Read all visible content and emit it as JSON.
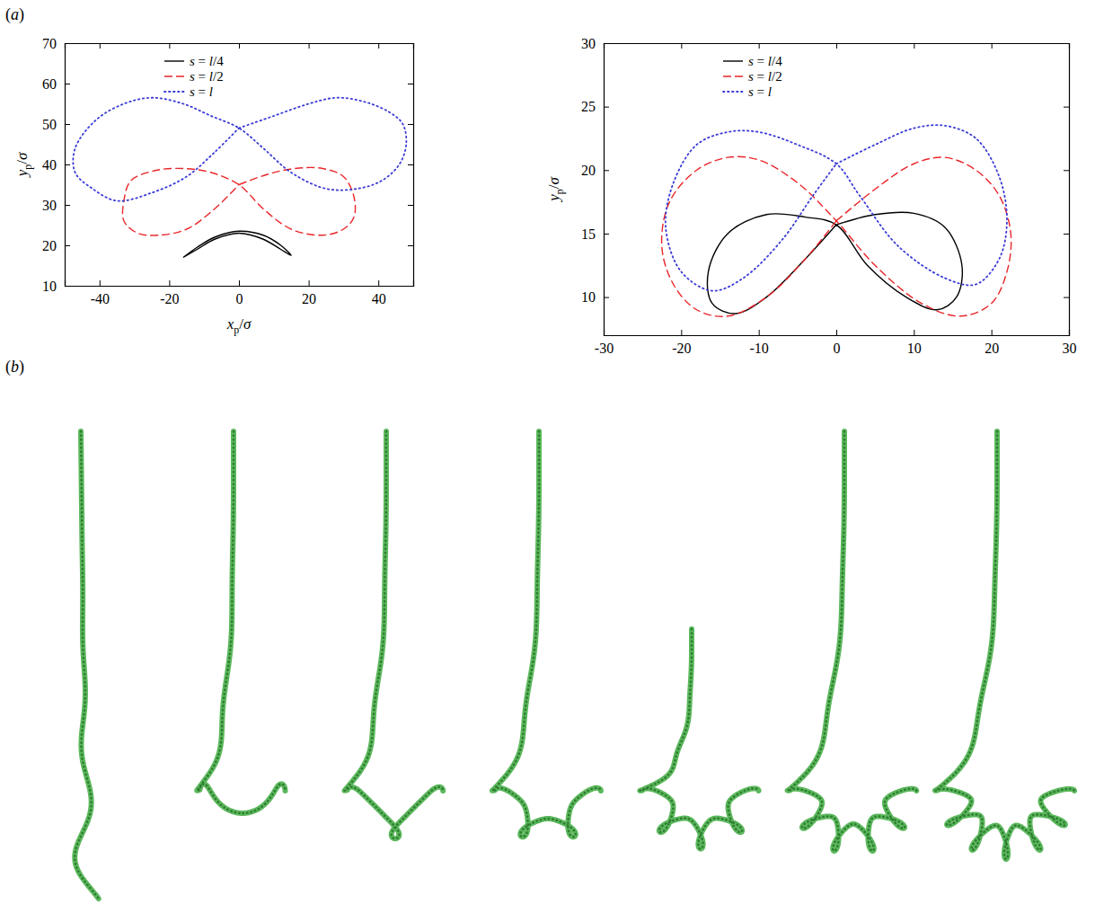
{
  "panel_labels": [
    "(a)",
    "(b)"
  ],
  "chart_data": [
    {
      "type": "line",
      "x_label": "xp/σ",
      "y_label": "yp/σ",
      "legend": "top",
      "xlim": [
        -50,
        50
      ],
      "xticks": [
        -40,
        -20,
        0,
        20,
        40
      ],
      "ylim": [
        10,
        70
      ],
      "yticks": [
        10,
        20,
        30,
        40,
        50,
        60,
        70
      ],
      "series": [
        {
          "name": "s = l/4",
          "color": "#000000",
          "line_style": "solid",
          "x": [
            -16,
            -12,
            -7,
            0,
            7,
            12,
            15,
            12,
            7,
            0,
            -7,
            -12,
            -16
          ],
          "values": [
            17,
            19.5,
            22,
            23.5,
            22.5,
            20,
            17.5,
            19,
            21.5,
            23,
            21.5,
            19,
            17
          ]
        },
        {
          "name": "s = l/2",
          "color": "#e8262a",
          "line_style": "dashed",
          "x": [
            0,
            8,
            16,
            24,
            30,
            33,
            33,
            30,
            24,
            15,
            7,
            0,
            -8,
            -16,
            -24,
            -31,
            -33,
            -33,
            -29,
            -23,
            -15,
            -7,
            0
          ],
          "values": [
            35,
            37.5,
            39,
            39,
            37,
            32,
            27,
            24,
            22.5,
            24,
            29,
            35,
            38,
            39,
            38.5,
            36,
            31,
            26,
            23,
            22.5,
            24,
            29,
            35
          ]
        },
        {
          "name": "s = l",
          "color": "#3b3bd6",
          "line_style": "dotted",
          "x": [
            0,
            10,
            20,
            28,
            36,
            43,
            47,
            48,
            46,
            41,
            34,
            25,
            15,
            7,
            0,
            -8,
            -16,
            -25,
            -33,
            -41,
            -47,
            -47,
            -42,
            -35,
            -25,
            -15,
            -7,
            0
          ],
          "values": [
            49,
            52,
            55,
            56.5,
            55.5,
            53,
            50,
            45,
            40,
            36,
            34,
            34,
            38,
            44,
            49,
            52,
            55,
            56.5,
            55,
            51,
            44,
            38,
            34,
            31,
            33,
            37,
            43,
            49
          ]
        }
      ]
    },
    {
      "type": "line",
      "y_label": "yp/σ",
      "legend": "top",
      "xlim": [
        -30,
        30
      ],
      "xticks": [
        -30,
        -20,
        -10,
        0,
        10,
        20,
        30
      ],
      "ylim": [
        7,
        30
      ],
      "yticks": [
        10,
        15,
        20,
        25,
        30
      ],
      "series": [
        {
          "name": "s = l/4",
          "color": "#000000",
          "line_style": "solid",
          "x": [
            0,
            5,
            10,
            14,
            16.2,
            15.5,
            13,
            9,
            4,
            0,
            -4,
            -9,
            -14,
            -16.5,
            -16,
            -13,
            -9,
            -4,
            0
          ],
          "values": [
            15.7,
            16.5,
            16.6,
            15.5,
            12.5,
            10,
            9,
            10,
            12.5,
            15.7,
            16.3,
            16.5,
            15,
            12,
            9.5,
            8.7,
            10,
            13,
            15.7
          ]
        },
        {
          "name": "s = l/2",
          "color": "#e8262a",
          "line_style": "dashed",
          "x": [
            0,
            5,
            10,
            14,
            18,
            21,
            22.5,
            22,
            20,
            16,
            11,
            5,
            0,
            -5,
            -10,
            -14,
            -18,
            -21.5,
            -22.5,
            -21,
            -18,
            -14,
            -9,
            -4,
            0
          ],
          "values": [
            16,
            18.5,
            20.5,
            21,
            20,
            18,
            15,
            12,
            9.5,
            8.5,
            9.5,
            12.5,
            16,
            19,
            20.8,
            21,
            20,
            17.5,
            14,
            11,
            9,
            8.5,
            10,
            13,
            16
          ]
        },
        {
          "name": "s = l",
          "color": "#3b3bd6",
          "line_style": "dotted",
          "x": [
            0,
            5,
            10,
            14,
            18,
            21,
            22,
            21,
            18,
            14,
            8,
            3,
            0,
            -5,
            -10,
            -14,
            -18,
            -21,
            -22,
            -20,
            -16,
            -12,
            -7,
            -3,
            0
          ],
          "values": [
            20.5,
            22,
            23.3,
            23.5,
            22.5,
            19.5,
            16,
            13,
            11,
            11.5,
            14,
            18,
            20.5,
            22,
            23,
            23,
            22,
            19,
            15.5,
            12,
            10.5,
            11.5,
            14.5,
            18,
            20.5
          ]
        }
      ]
    }
  ]
}
